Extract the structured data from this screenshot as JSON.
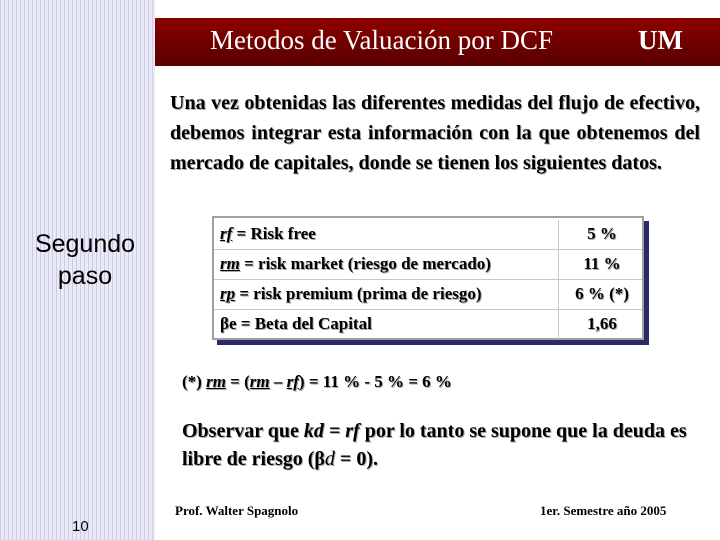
{
  "header": {
    "title": "Metodos de Valuación por DCF",
    "logo": "UM"
  },
  "intro": "Una vez obtenidas las diferentes medidas del flujo de efectivo, debemos integrar esta información con la que obtenemos del mercado de capitales, donde se tienen los siguientes datos.",
  "sidebar": {
    "step_line1": "Segundo",
    "step_line2": "paso"
  },
  "table": {
    "rows": [
      {
        "symbol": "rf",
        "desc": " = Risk free",
        "value": "5 %"
      },
      {
        "symbol": "rm",
        "desc": " = risk market (riesgo de mercado)",
        "value": "11 %"
      },
      {
        "symbol": "rp",
        "desc": " = risk premium (prima de riesgo)",
        "value": "6 % (*)"
      },
      {
        "symbol": "βe",
        "desc": " = Beta del Capital",
        "value": "1,66"
      }
    ]
  },
  "formula": {
    "prefix": "(*) ",
    "rm": "rm",
    "eq1": " = (",
    "rm2": "rm",
    "minus": " – ",
    "rf": "rf",
    "tail": ") = 11 % - 5 % = 6 %"
  },
  "observar": {
    "part1": "Observar que ",
    "kd": "kd = rf",
    "part2": " por lo tanto se supone que la deuda es libre de riesgo (β",
    "d": "d",
    "part3": "  = 0)."
  },
  "footer": {
    "author": "Prof. Walter  Spagnolo",
    "semester": "1er. Semestre año 2005",
    "page_number": "10"
  }
}
